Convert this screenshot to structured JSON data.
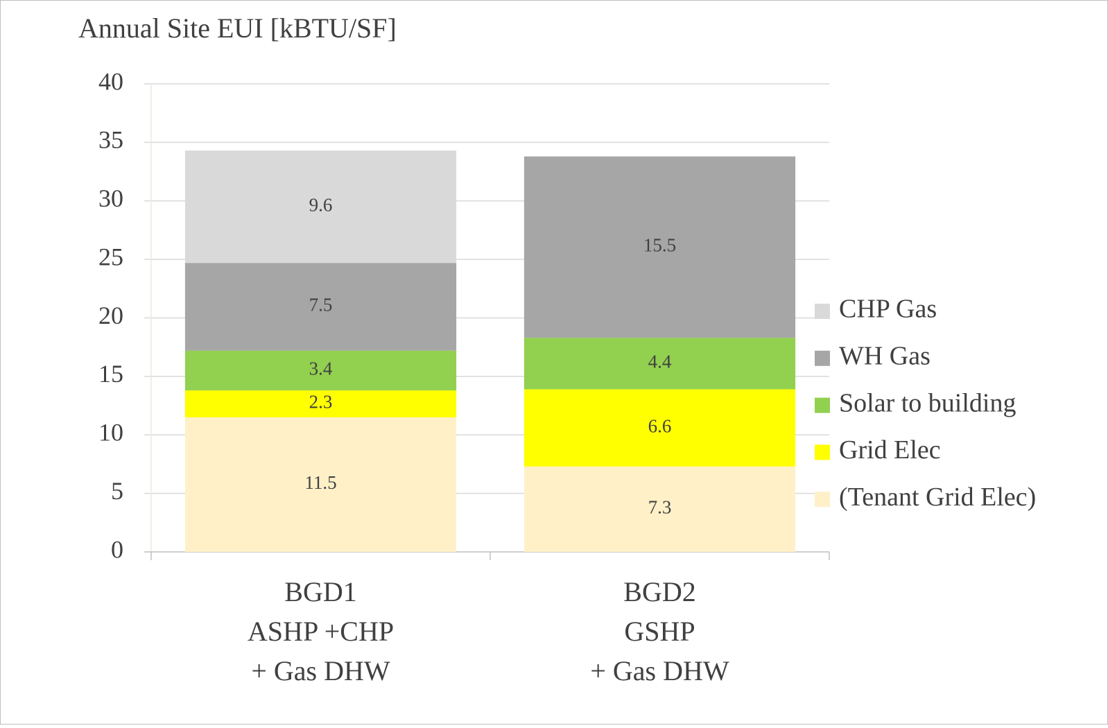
{
  "chart_data": {
    "type": "stacked_bar",
    "title": "Annual Site EUI [kBTU/SF]",
    "categories": [
      [
        "BGD1",
        "ASHP +CHP",
        "+ Gas DHW"
      ],
      [
        "BGD2",
        "GSHP",
        "+ Gas DHW"
      ]
    ],
    "series": [
      {
        "name": "(Tenant Grid Elec)",
        "color": "#fff0c8",
        "values": [
          11.5,
          7.3
        ]
      },
      {
        "name": "Grid Elec",
        "color": "#ffff00",
        "values": [
          2.3,
          6.6
        ]
      },
      {
        "name": "Solar to building",
        "color": "#92d050",
        "values": [
          3.4,
          4.4
        ]
      },
      {
        "name": "WH Gas",
        "color": "#a6a6a6",
        "values": [
          7.5,
          15.5
        ]
      },
      {
        "name": "CHP Gas",
        "color": "#d9d9d9",
        "values": [
          9.6,
          null
        ]
      }
    ],
    "ylim": [
      0,
      40
    ],
    "yticks": [
      0,
      5,
      10,
      15,
      20,
      25,
      30,
      35,
      40
    ],
    "grid": true,
    "legend": "right"
  }
}
